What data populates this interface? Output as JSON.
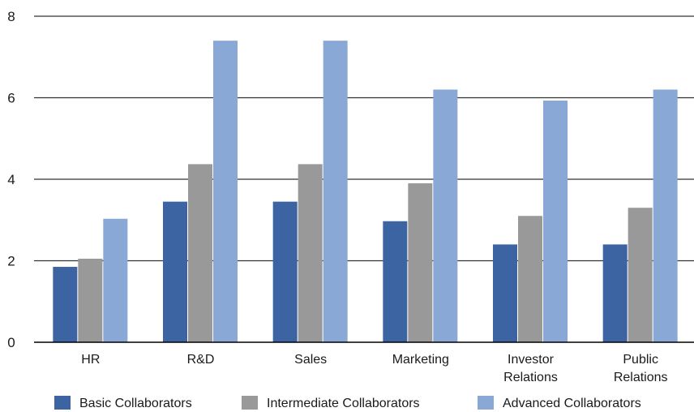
{
  "chart_data": {
    "type": "bar",
    "categories": [
      [
        "HR"
      ],
      [
        "R&D"
      ],
      [
        "Sales"
      ],
      [
        "Marketing"
      ],
      [
        "Investor",
        "Relations"
      ],
      [
        "Public",
        "Relations"
      ]
    ],
    "series": [
      {
        "name": "Basic Collaborators",
        "color": "#3c64a3",
        "values": [
          1.85,
          3.45,
          3.45,
          2.97,
          2.4,
          2.4
        ]
      },
      {
        "name": "Intermediate Collaborators",
        "color": "#999999",
        "values": [
          2.05,
          4.37,
          4.37,
          3.9,
          3.1,
          3.3
        ]
      },
      {
        "name": "Advanced Collaborators",
        "color": "#8aa8d6",
        "values": [
          3.03,
          7.4,
          7.4,
          6.2,
          5.93,
          6.2
        ]
      }
    ],
    "ylim": [
      0,
      8
    ],
    "yticks": [
      "0",
      "2",
      "4",
      "6",
      "8"
    ],
    "grid": true,
    "legend_position": "bottom"
  }
}
